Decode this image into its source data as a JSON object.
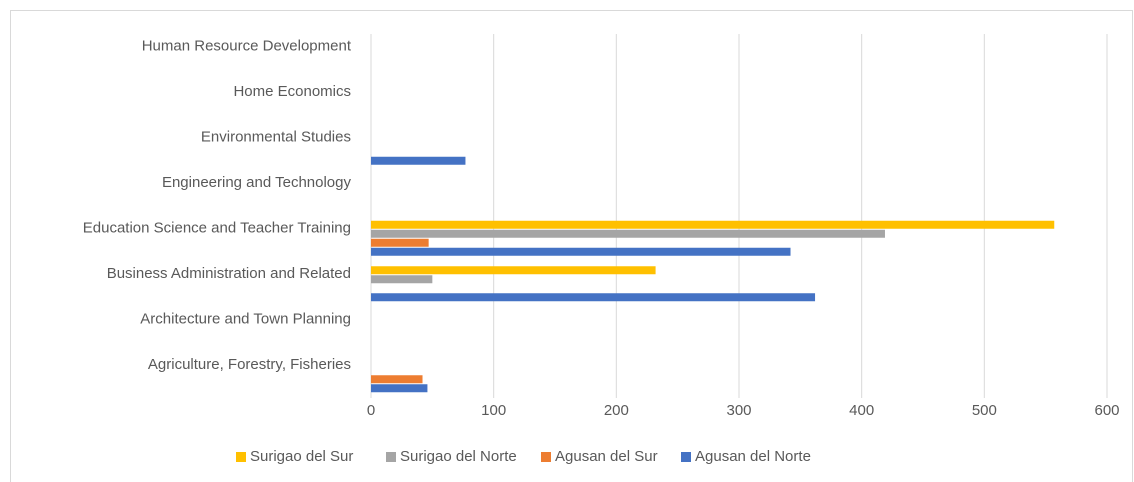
{
  "chart_data": {
    "type": "bar",
    "orientation": "horizontal",
    "categories": [
      "Agriculture, Forestry, Fisheries",
      "Architecture and Town Planning",
      "Business Administration and Related",
      "Education Science and Teacher Training",
      "Engineering and Technology",
      "Environmental Studies",
      "Home Economics",
      "Human Resource Development"
    ],
    "series": [
      {
        "name": "Surigao del Sur",
        "color": "#ffc000",
        "values": [
          0,
          0,
          232,
          557,
          0,
          0,
          0,
          0
        ]
      },
      {
        "name": "Surigao del Norte",
        "color": "#a5a5a5",
        "values": [
          0,
          0,
          50,
          419,
          0,
          0,
          0,
          0
        ]
      },
      {
        "name": "Agusan del Sur",
        "color": "#ed7d31",
        "values": [
          42,
          0,
          0,
          47,
          0,
          0,
          0,
          0
        ]
      },
      {
        "name": "Agusan del Norte",
        "color": "#4472c4",
        "values": [
          46,
          0,
          362,
          342,
          0,
          77,
          0,
          0
        ]
      }
    ],
    "xlim": [
      0,
      600
    ],
    "xticks": [
      0,
      100,
      200,
      300,
      400,
      500,
      600
    ],
    "grid": true,
    "legend": "bottom"
  }
}
